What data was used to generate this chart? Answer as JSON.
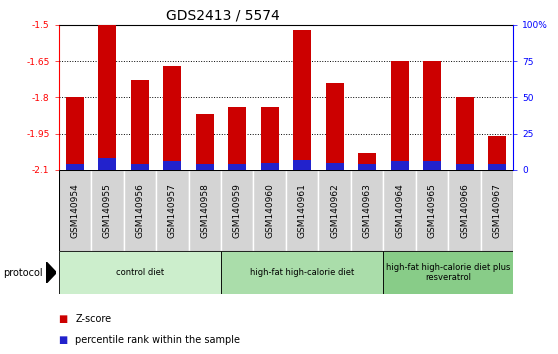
{
  "title": "GDS2413 / 5574",
  "samples": [
    "GSM140954",
    "GSM140955",
    "GSM140956",
    "GSM140957",
    "GSM140958",
    "GSM140959",
    "GSM140960",
    "GSM140961",
    "GSM140962",
    "GSM140963",
    "GSM140964",
    "GSM140965",
    "GSM140966",
    "GSM140967"
  ],
  "z_scores": [
    -1.8,
    -1.5,
    -1.73,
    -1.67,
    -1.87,
    -1.84,
    -1.84,
    -1.52,
    -1.74,
    -2.03,
    -1.65,
    -1.65,
    -1.8,
    -1.96
  ],
  "percentile_ranks": [
    4,
    8,
    4,
    6,
    4,
    4,
    5,
    7,
    5,
    4,
    6,
    6,
    4,
    4
  ],
  "ylim_left": [
    -2.1,
    -1.5
  ],
  "ylim_right": [
    0,
    100
  ],
  "yticks_left": [
    -2.1,
    -1.95,
    -1.8,
    -1.65,
    -1.5
  ],
  "yticks_right": [
    0,
    25,
    50,
    75,
    100
  ],
  "bar_color_red": "#cc0000",
  "bar_color_blue": "#2222cc",
  "protocol_groups": [
    {
      "label": "control diet",
      "start": 0,
      "end": 5,
      "color": "#cceecc"
    },
    {
      "label": "high-fat high-calorie diet",
      "start": 5,
      "end": 10,
      "color": "#aaddaa"
    },
    {
      "label": "high-fat high-calorie diet plus\nresveratrol",
      "start": 10,
      "end": 14,
      "color": "#88cc88"
    }
  ],
  "legend_items": [
    {
      "label": "Z-score",
      "color": "#cc0000"
    },
    {
      "label": "percentile rank within the sample",
      "color": "#2222cc"
    }
  ],
  "title_fontsize": 10,
  "tick_fontsize": 6.5,
  "label_fontsize": 7,
  "cell_bg_color": "#d4d4d4",
  "plot_bg_color": "#ffffff"
}
